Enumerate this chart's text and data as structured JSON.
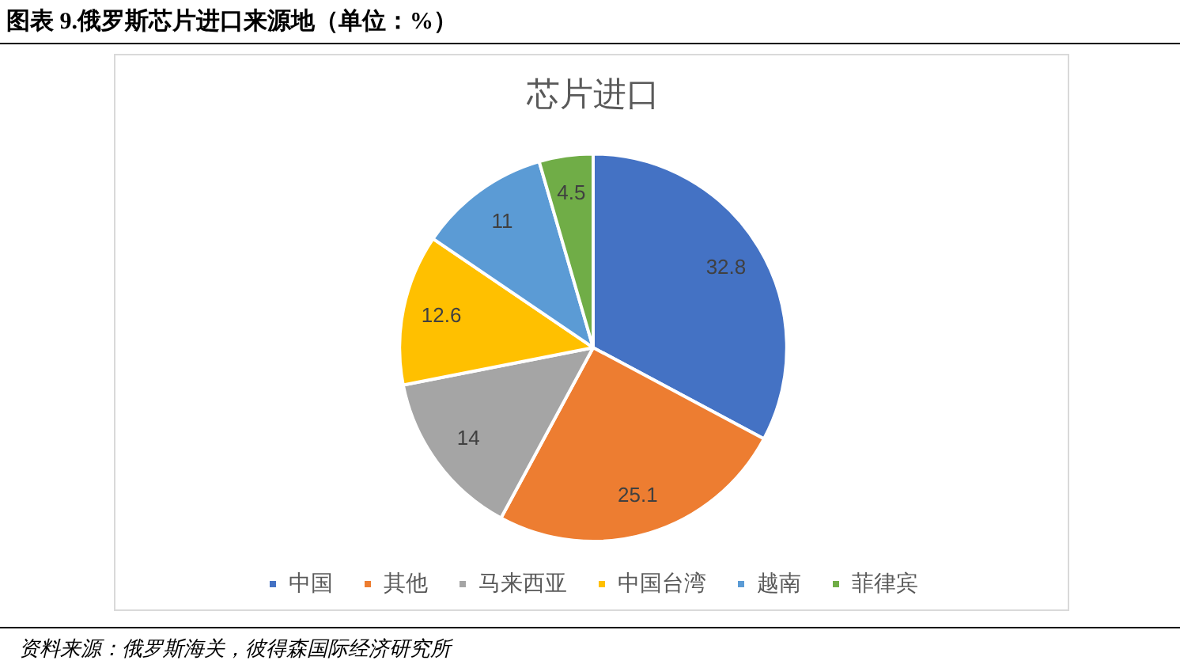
{
  "chart_data": {
    "type": "pie",
    "title": "图表 9.俄罗斯芯片进口来源地（单位：%）",
    "subtitle": "芯片进口",
    "categories": [
      "中国",
      "其他",
      "马来西亚",
      "中国台湾",
      "越南",
      "菲律宾"
    ],
    "values": [
      32.8,
      25.1,
      14,
      12.6,
      11,
      4.5
    ],
    "colors": [
      "#4472c4",
      "#ed7d31",
      "#a5a5a5",
      "#ffc000",
      "#5b9bd5",
      "#70ad47"
    ],
    "data_labels": true,
    "legend": "bottom",
    "annotations": [
      "资料来源：俄罗斯海关，彼得森国际经济研究所"
    ]
  }
}
